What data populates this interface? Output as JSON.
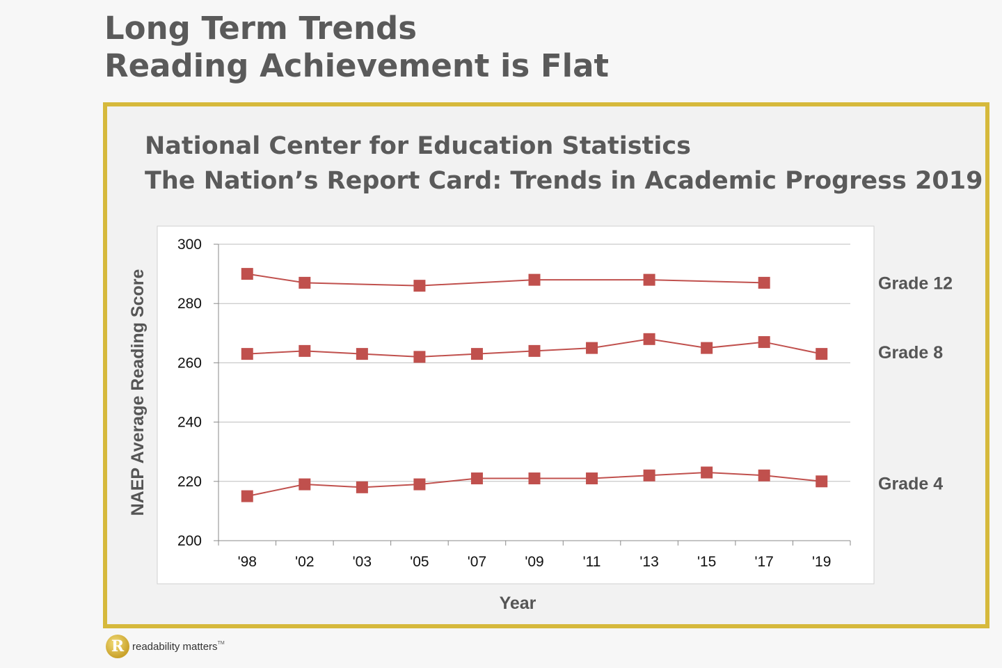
{
  "title": {
    "line1": "Long Term Trends",
    "line2": "Reading Achievement is Flat"
  },
  "source": {
    "line1": "National Center for Education Statistics",
    "line2": "The Nation’s Report Card: Trends in Academic Progress 2019"
  },
  "logo": {
    "mark": "R",
    "text": "readability matters",
    "tm": "TM"
  },
  "colors": {
    "series": "#c0504d",
    "frame": "#d6b93c",
    "text": "#5a5a5a"
  },
  "chart_data": {
    "type": "line",
    "categories": [
      "'98",
      "'02",
      "'03",
      "'05",
      "'07",
      "'09",
      "'11",
      "'13",
      "'15",
      "'17",
      "'19"
    ],
    "series": [
      {
        "name": "Grade 12",
        "values": [
          290,
          287,
          null,
          286,
          null,
          288,
          null,
          288,
          null,
          287,
          null
        ]
      },
      {
        "name": "Grade 8",
        "values": [
          263,
          264,
          263,
          262,
          263,
          264,
          265,
          268,
          265,
          267,
          263
        ]
      },
      {
        "name": "Grade 4",
        "values": [
          215,
          219,
          218,
          219,
          221,
          221,
          221,
          222,
          223,
          222,
          220
        ]
      }
    ],
    "xlabel": "Year",
    "ylabel": "NAEP Average Reading Score",
    "ylim": [
      200,
      300
    ],
    "yticks": [
      200,
      220,
      240,
      260,
      280,
      300
    ],
    "grid": true,
    "marker": "square",
    "legend": "right"
  }
}
